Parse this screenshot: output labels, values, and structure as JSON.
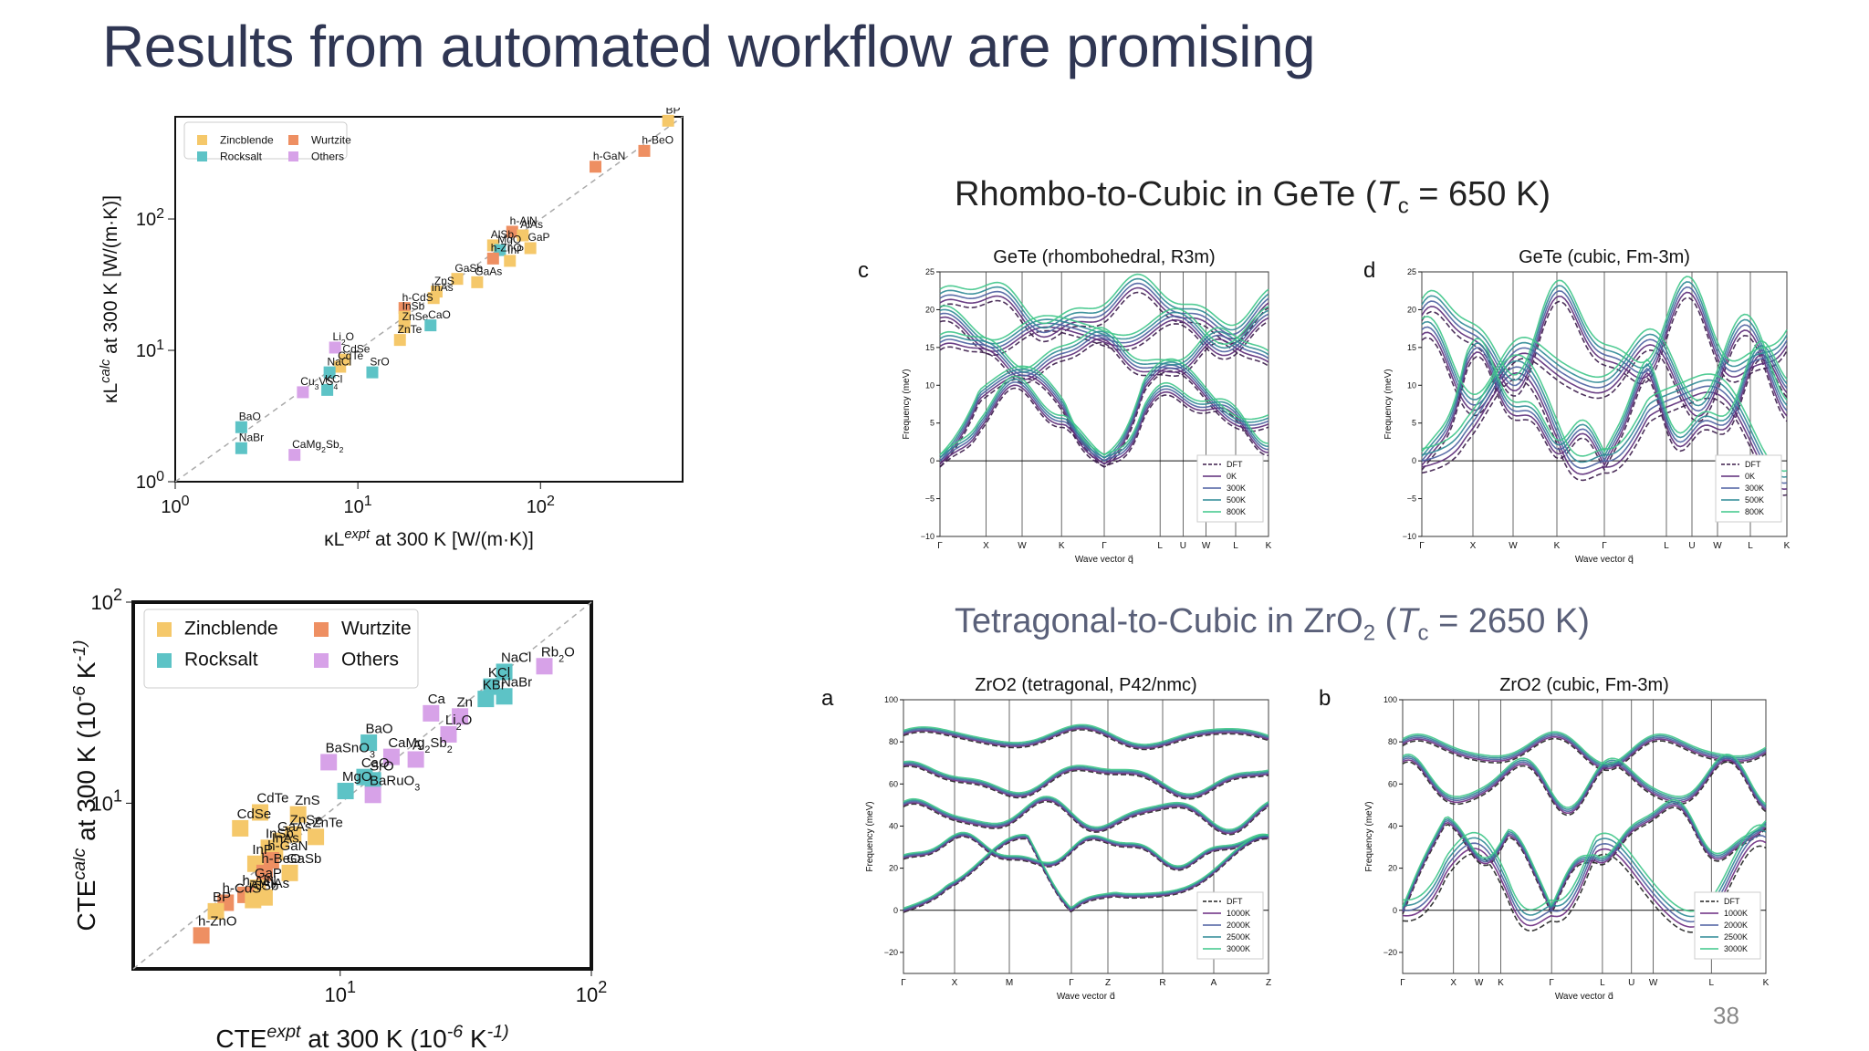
{
  "slide": {
    "title": "Results from automated workflow are promising",
    "section_gete": "Rhombo-to-Cubic in GeTe (Tc = 650 K)",
    "section_gete_parts": [
      "Rhombo-to-Cubic in GeTe (",
      "T",
      "c",
      " = 650 K)"
    ],
    "section_zro2_parts": [
      "Tetragonal-to-Cubic in ZrO",
      "2",
      " (",
      "T",
      "c",
      " = 2650 K)"
    ],
    "page_number": "38"
  },
  "colors": {
    "zincblende": "#f5c86a",
    "wurtzite": "#ee8f62",
    "rocksalt": "#5dc3c6",
    "others": "#d7a2e8",
    "title": "#2f3653"
  },
  "chart_data": [
    {
      "id": "kappa",
      "type": "scatter",
      "xlabel": "κL^expt at 300 K [W/(m·K)]",
      "ylabel": "κL^calc at 300 K [W/(m·K)]",
      "xscale": "log",
      "yscale": "log",
      "xlim": [
        1,
        600
      ],
      "ylim": [
        1,
        600
      ],
      "xtick_labels": [
        "10^0",
        "10^1",
        "10^2"
      ],
      "ytick_labels": [
        "10^0",
        "10^1",
        "10^2"
      ],
      "legend_position": "top-left",
      "legend": [
        "Zincblende",
        "Wurtzite",
        "Rocksalt",
        "Others"
      ],
      "points": [
        {
          "label": "BP",
          "x": 500,
          "y": 560,
          "cls": "zincblende"
        },
        {
          "label": "h-BeO",
          "x": 370,
          "y": 330,
          "cls": "wurtzite"
        },
        {
          "label": "h-GaN",
          "x": 200,
          "y": 250,
          "cls": "wurtzite"
        },
        {
          "label": "h-AlN",
          "x": 70,
          "y": 80,
          "cls": "wurtzite"
        },
        {
          "label": "AlAs",
          "x": 80,
          "y": 75,
          "cls": "zincblende"
        },
        {
          "label": "AlSb",
          "x": 55,
          "y": 63,
          "cls": "zincblende"
        },
        {
          "label": "MgO",
          "x": 60,
          "y": 58,
          "cls": "rocksalt"
        },
        {
          "label": "GaP",
          "x": 88,
          "y": 60,
          "cls": "zincblende"
        },
        {
          "label": "h-ZnO",
          "x": 55,
          "y": 50,
          "cls": "wurtzite"
        },
        {
          "label": "InP",
          "x": 68,
          "y": 48,
          "cls": "zincblende"
        },
        {
          "label": "GaSb",
          "x": 35,
          "y": 35,
          "cls": "zincblende"
        },
        {
          "label": "GaAs",
          "x": 45,
          "y": 33,
          "cls": "zincblende"
        },
        {
          "label": "ZnS",
          "x": 27,
          "y": 28,
          "cls": "zincblende"
        },
        {
          "label": "InAs",
          "x": 26,
          "y": 25,
          "cls": "zincblende"
        },
        {
          "label": "h-CdS",
          "x": 18,
          "y": 21,
          "cls": "wurtzite"
        },
        {
          "label": "InSb",
          "x": 18,
          "y": 18,
          "cls": "zincblende"
        },
        {
          "label": "ZnSe",
          "x": 18,
          "y": 15,
          "cls": "zincblende"
        },
        {
          "label": "CaO",
          "x": 25,
          "y": 15.5,
          "cls": "rocksalt"
        },
        {
          "label": "ZnTe",
          "x": 17,
          "y": 12,
          "cls": "zincblende"
        },
        {
          "label": "Li2O",
          "x": 7.5,
          "y": 10.5,
          "cls": "others"
        },
        {
          "label": "CdSe",
          "x": 8.5,
          "y": 8.5,
          "cls": "zincblende"
        },
        {
          "label": "CdTe",
          "x": 8,
          "y": 7.5,
          "cls": "zincblende"
        },
        {
          "label": "NaCl",
          "x": 7,
          "y": 6.8,
          "cls": "rocksalt"
        },
        {
          "label": "SrO",
          "x": 12,
          "y": 6.8,
          "cls": "rocksalt"
        },
        {
          "label": "KCl",
          "x": 6.8,
          "y": 5,
          "cls": "rocksalt"
        },
        {
          "label": "Cu3VS4",
          "x": 5,
          "y": 4.8,
          "cls": "others"
        },
        {
          "label": "BaO",
          "x": 2.3,
          "y": 2.6,
          "cls": "rocksalt"
        },
        {
          "label": "NaBr",
          "x": 2.3,
          "y": 1.8,
          "cls": "rocksalt"
        },
        {
          "label": "CaMg2Sb2",
          "x": 4.5,
          "y": 1.6,
          "cls": "others"
        }
      ]
    },
    {
      "id": "cte",
      "type": "scatter",
      "xlabel": "CTE^expt at 300 K (10^-6 K^-1)",
      "ylabel": "CTE^calc at 300 K (10^-6 K^-1)",
      "xscale": "log",
      "yscale": "log",
      "xlim": [
        1.5,
        100
      ],
      "ylim": [
        1.5,
        100
      ],
      "xtick_labels": [
        "10^1",
        "10^2"
      ],
      "ytick_labels": [
        "10^1",
        "10^2"
      ],
      "legend_position": "top-left",
      "legend": [
        "Zincblende",
        "Wurtzite",
        "Rocksalt",
        "Others"
      ],
      "points": [
        {
          "label": "Rb2O",
          "x": 65,
          "y": 48,
          "cls": "others"
        },
        {
          "label": "NaCl",
          "x": 45,
          "y": 45,
          "cls": "rocksalt"
        },
        {
          "label": "KCl",
          "x": 40,
          "y": 38,
          "cls": "rocksalt"
        },
        {
          "label": "NaBr",
          "x": 45,
          "y": 34,
          "cls": "rocksalt"
        },
        {
          "label": "KBr",
          "x": 38,
          "y": 33,
          "cls": "rocksalt"
        },
        {
          "label": "Ca",
          "x": 23,
          "y": 28,
          "cls": "others"
        },
        {
          "label": "Zn",
          "x": 30,
          "y": 27,
          "cls": "others"
        },
        {
          "label": "Li2O",
          "x": 27,
          "y": 22,
          "cls": "others"
        },
        {
          "label": "BaO",
          "x": 13,
          "y": 20,
          "cls": "rocksalt"
        },
        {
          "label": "BaSnO3",
          "x": 9,
          "y": 16,
          "cls": "others"
        },
        {
          "label": "CaMg2Sb2",
          "x": 16,
          "y": 17,
          "cls": "others"
        },
        {
          "label": "Al",
          "x": 20,
          "y": 16.5,
          "cls": "others"
        },
        {
          "label": "CaO",
          "x": 12.5,
          "y": 13.5,
          "cls": "rocksalt"
        },
        {
          "label": "SrO",
          "x": 13.5,
          "y": 13,
          "cls": "rocksalt"
        },
        {
          "label": "MgO",
          "x": 10.5,
          "y": 11.5,
          "cls": "rocksalt"
        },
        {
          "label": "BaRuO3",
          "x": 13.5,
          "y": 11,
          "cls": "others"
        },
        {
          "label": "CdTe",
          "x": 4.8,
          "y": 9,
          "cls": "zincblende"
        },
        {
          "label": "ZnS",
          "x": 6.8,
          "y": 8.8,
          "cls": "zincblende"
        },
        {
          "label": "CdSe",
          "x": 4,
          "y": 7.5,
          "cls": "zincblende"
        },
        {
          "label": "ZnSe",
          "x": 6.5,
          "y": 7,
          "cls": "zincblende"
        },
        {
          "label": "GaAs",
          "x": 5.8,
          "y": 6.5,
          "cls": "zincblende"
        },
        {
          "label": "ZnTe",
          "x": 8,
          "y": 6.8,
          "cls": "zincblende"
        },
        {
          "label": "InSb",
          "x": 5.2,
          "y": 6,
          "cls": "zincblende"
        },
        {
          "label": "InAs",
          "x": 5.5,
          "y": 5.7,
          "cls": "zincblende"
        },
        {
          "label": "h-GaN",
          "x": 5.3,
          "y": 5.2,
          "cls": "wurtzite"
        },
        {
          "label": "InP",
          "x": 4.6,
          "y": 5,
          "cls": "zincblende"
        },
        {
          "label": "h-BeO",
          "x": 5,
          "y": 4.5,
          "cls": "wurtzite"
        },
        {
          "label": "GaSb",
          "x": 6.3,
          "y": 4.5,
          "cls": "zincblende"
        },
        {
          "label": "GaP",
          "x": 4.7,
          "y": 3.8,
          "cls": "zincblende"
        },
        {
          "label": "h-AlN",
          "x": 4.2,
          "y": 3.5,
          "cls": "wurtzite"
        },
        {
          "label": "AlAs",
          "x": 5,
          "y": 3.4,
          "cls": "zincblende"
        },
        {
          "label": "AlSb",
          "x": 4.5,
          "y": 3.3,
          "cls": "zincblende"
        },
        {
          "label": "h-CdS",
          "x": 3.5,
          "y": 3.2,
          "cls": "wurtzite"
        },
        {
          "label": "BP",
          "x": 3.2,
          "y": 2.9,
          "cls": "zincblende"
        },
        {
          "label": "h-ZnO",
          "x": 2.8,
          "y": 2.2,
          "cls": "wurtzite"
        }
      ]
    },
    {
      "id": "phonon-c",
      "type": "line",
      "panel_label": "c",
      "title": "GeTe (rhombohedral, R3m)",
      "ylabel": "Frequency (meV)",
      "xlabel": "Wave vector q",
      "ylim": [
        -10,
        25
      ],
      "yticks": [
        -10,
        -5,
        0,
        5,
        10,
        15,
        20,
        25
      ],
      "xtick_labels": [
        "Γ",
        "X",
        "W",
        "K",
        "Γ",
        "L",
        "U",
        "W",
        "L",
        "K"
      ],
      "legend": [
        "DFT",
        "0K",
        "300K",
        "500K",
        "800K"
      ],
      "series_colors": [
        "#3b1c4a",
        "#5b2a78",
        "#4b5fa0",
        "#2d8a95",
        "#3fc78a"
      ]
    },
    {
      "id": "phonon-d",
      "type": "line",
      "panel_label": "d",
      "title": "GeTe (cubic, Fm-3m)",
      "ylabel": "Frequency (meV)",
      "xlabel": "Wave vector q",
      "ylim": [
        -10,
        25
      ],
      "yticks": [
        -10,
        -5,
        0,
        5,
        10,
        15,
        20,
        25
      ],
      "xtick_labels": [
        "Γ",
        "X",
        "W",
        "K",
        "Γ",
        "L",
        "U",
        "W",
        "L",
        "K"
      ],
      "legend": [
        "DFT",
        "0K",
        "300K",
        "500K",
        "800K"
      ],
      "series_colors": [
        "#3b1c4a",
        "#5b2a78",
        "#4b5fa0",
        "#2d8a95",
        "#3fc78a"
      ]
    },
    {
      "id": "phonon-a",
      "type": "line",
      "panel_label": "a",
      "title": "ZrO2 (tetragonal, P42/nmc)",
      "ylabel": "Frequency (meV)",
      "xlabel": "Wave vector q",
      "ylim": [
        -30,
        100
      ],
      "yticks": [
        -20,
        0,
        20,
        40,
        60,
        80,
        100
      ],
      "xtick_labels": [
        "Γ",
        "X",
        "M",
        "Γ",
        "Z",
        "R",
        "A",
        "Z"
      ],
      "legend": [
        "DFT",
        "1000K",
        "2000K",
        "2500K",
        "3000K"
      ],
      "series_colors": [
        "#222222",
        "#6a2a80",
        "#4b5fa0",
        "#2d8a95",
        "#3fc78a"
      ]
    },
    {
      "id": "phonon-b",
      "type": "line",
      "panel_label": "b",
      "title": "ZrO2 (cubic, Fm-3m)",
      "ylabel": "Frequency (meV)",
      "xlabel": "Wave vector q",
      "ylim": [
        -30,
        100
      ],
      "yticks": [
        -20,
        0,
        20,
        40,
        60,
        80,
        100
      ],
      "xtick_labels": [
        "Γ",
        "X",
        "W",
        "K",
        "Γ",
        "L",
        "U",
        "W",
        "L",
        "K"
      ],
      "legend": [
        "DFT",
        "1000K",
        "2000K",
        "2500K",
        "3000K"
      ],
      "series_colors": [
        "#222222",
        "#6a2a80",
        "#4b5fa0",
        "#2d8a95",
        "#3fc78a"
      ]
    }
  ]
}
